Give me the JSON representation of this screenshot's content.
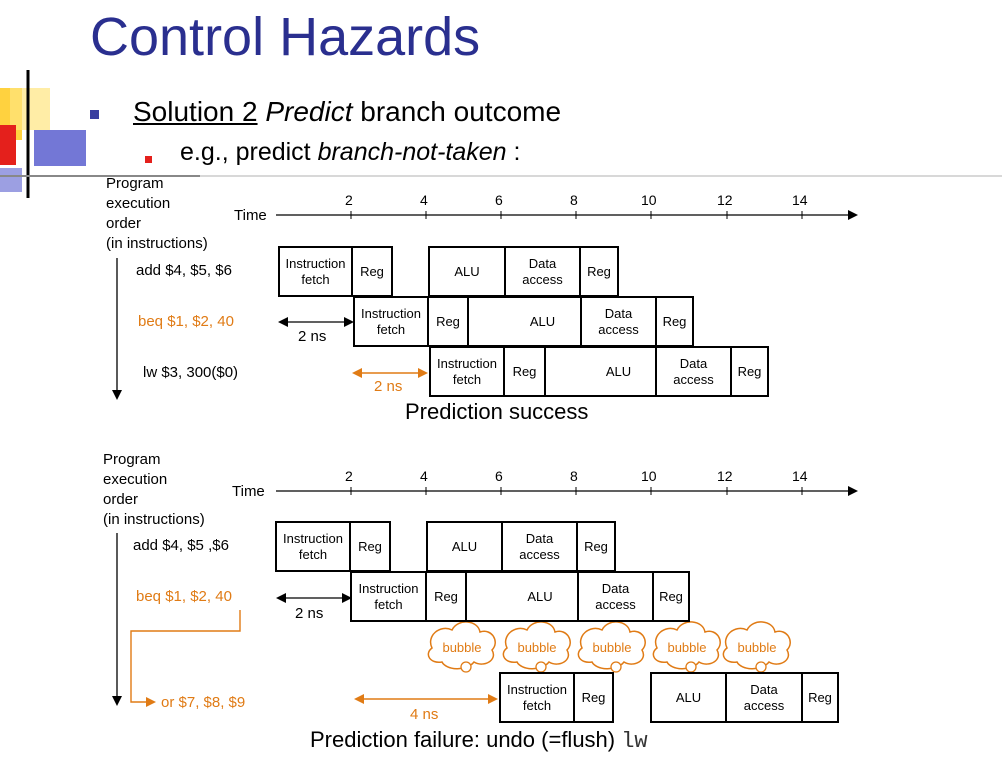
{
  "title": "Control Hazards",
  "solution": {
    "underlined": "Solution 2",
    "italic": "Predict",
    "rest": " branch outcome"
  },
  "example": {
    "prefix": "e.g., predict ",
    "italic": "branch-not-taken",
    "suffix": " :"
  },
  "axis_labels": {
    "program_order": [
      "Program",
      "execution",
      "order",
      "(in instructions)"
    ],
    "time": "Time",
    "ticks": [
      "2",
      "4",
      "6",
      "8",
      "10",
      "12",
      "14"
    ]
  },
  "stages": {
    "fetch": [
      "Instruction",
      "fetch"
    ],
    "reg": "Reg",
    "alu": "ALU",
    "data": [
      "Data",
      "access"
    ]
  },
  "diagram_success": {
    "instructions": [
      "add $4, $5, $6",
      "beq $1, $2, 40",
      "lw $3, 300($0)"
    ],
    "delay1": "2 ns",
    "delay2": "2 ns",
    "caption": "Prediction success"
  },
  "diagram_failure": {
    "instructions": [
      "add $4, $5 ,$6",
      "beq $1, $2, 40",
      "or $7, $8, $9"
    ],
    "delay1": "2 ns",
    "delay2": "4 ns",
    "bubble": "bubble",
    "caption": "Prediction failure: undo (=flush) ",
    "caption_code": "lw"
  },
  "colors": {
    "title": "#2a2f8f",
    "accent": "#e07b15",
    "bullet_red": "#e4201c",
    "deco_yellow": "#ffd700"
  }
}
